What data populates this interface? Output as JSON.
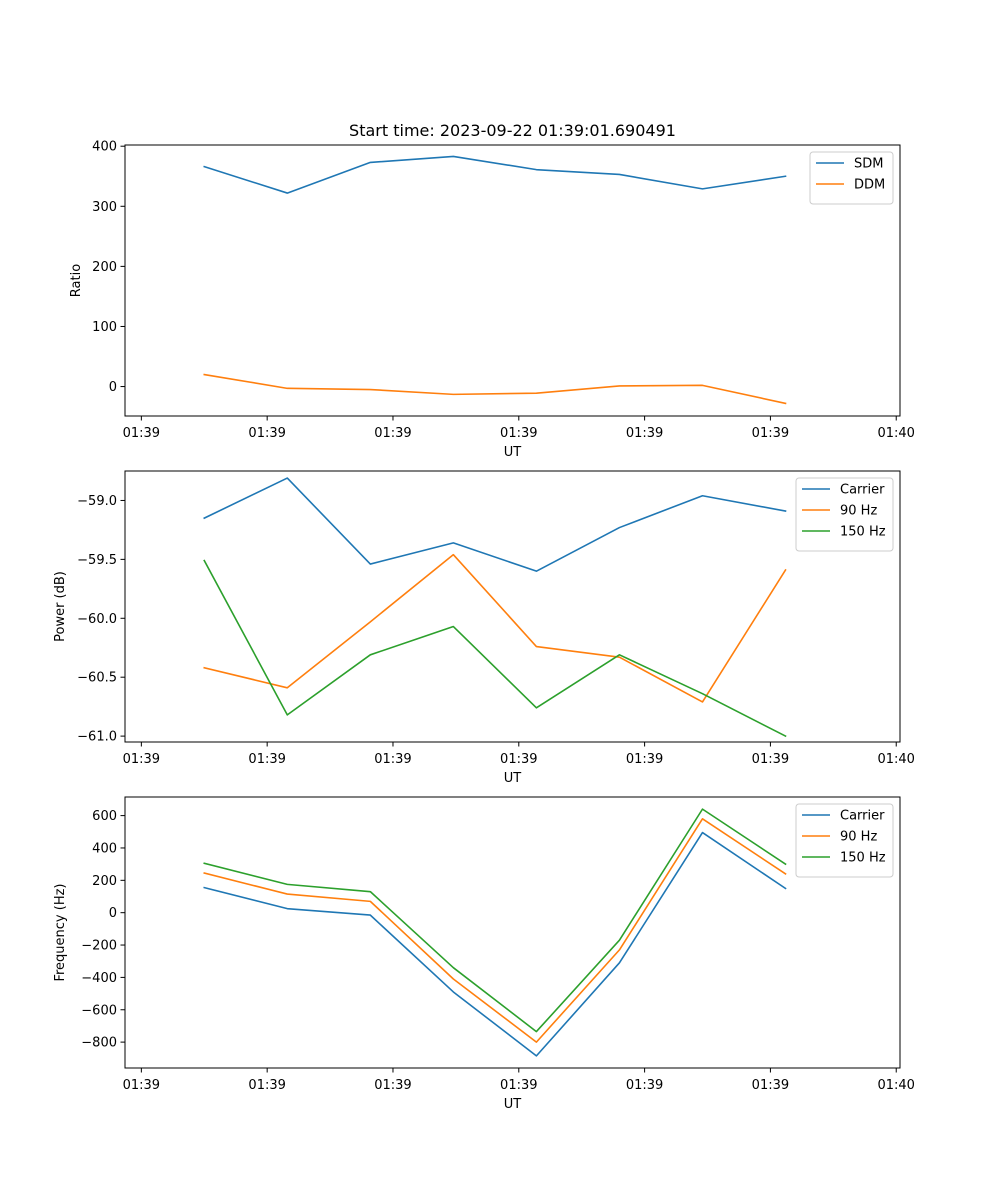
{
  "colors": {
    "blue": "#1f77b4",
    "orange": "#ff7f0e",
    "green": "#2ca02c"
  },
  "chart_data": [
    {
      "type": "line",
      "title": "Start time: 2023-09-22 01:39:01.690491",
      "xlabel": "UT",
      "ylabel": "Ratio",
      "x": [
        0.5,
        1.16,
        1.82,
        2.48,
        3.14,
        3.8,
        4.46,
        5.12
      ],
      "xlim": [
        -0.13,
        6.03
      ],
      "xticks": [
        0,
        1,
        2,
        3,
        4,
        5,
        6
      ],
      "xtick_labels": [
        "01:39",
        "01:39",
        "01:39",
        "01:39",
        "01:39",
        "01:39",
        "01:40"
      ],
      "ylim": [
        -49,
        402
      ],
      "yticks": [
        0,
        100,
        200,
        300,
        400
      ],
      "ytick_labels": [
        "0",
        "100",
        "200",
        "300",
        "400"
      ],
      "legend": "top-right",
      "series": [
        {
          "name": "SDM",
          "color": "#1f77b4",
          "values": [
            366,
            322,
            373,
            383,
            361,
            353,
            329,
            350
          ]
        },
        {
          "name": "DDM",
          "color": "#ff7f0e",
          "values": [
            20,
            -3,
            -5,
            -13,
            -11,
            1,
            2,
            -28
          ]
        }
      ]
    },
    {
      "type": "line",
      "title": "",
      "xlabel": "UT",
      "ylabel": "Power (dB)",
      "x": [
        0.5,
        1.16,
        1.82,
        2.48,
        3.14,
        3.8,
        4.46,
        5.12
      ],
      "xlim": [
        -0.13,
        6.03
      ],
      "xticks": [
        0,
        1,
        2,
        3,
        4,
        5,
        6
      ],
      "xtick_labels": [
        "01:39",
        "01:39",
        "01:39",
        "01:39",
        "01:39",
        "01:39",
        "01:40"
      ],
      "ylim": [
        -61.05,
        -58.75
      ],
      "yticks": [
        -61.0,
        -60.5,
        -60.0,
        -59.5,
        -59.0
      ],
      "ytick_labels": [
        "−61.0",
        "−60.5",
        "−60.0",
        "−59.5",
        "−59.0"
      ],
      "legend": "top-right",
      "series": [
        {
          "name": "Carrier",
          "color": "#1f77b4",
          "values": [
            -59.15,
            -58.81,
            -59.54,
            -59.36,
            -59.6,
            -59.23,
            -58.96,
            -59.09
          ]
        },
        {
          "name": "90 Hz",
          "color": "#ff7f0e",
          "values": [
            -60.42,
            -60.59,
            -60.03,
            -59.46,
            -60.24,
            -60.33,
            -60.71,
            -59.59
          ]
        },
        {
          "name": "150 Hz",
          "color": "#2ca02c",
          "values": [
            -59.51,
            -60.82,
            -60.31,
            -60.07,
            -60.76,
            -60.31,
            -60.64,
            -61.0
          ]
        }
      ]
    },
    {
      "type": "line",
      "title": "",
      "xlabel": "UT",
      "ylabel": "Frequency (Hz)",
      "x": [
        0.5,
        1.16,
        1.82,
        2.48,
        3.14,
        3.8,
        4.46,
        5.12
      ],
      "xlim": [
        -0.13,
        6.03
      ],
      "xticks": [
        0,
        1,
        2,
        3,
        4,
        5,
        6
      ],
      "xtick_labels": [
        "01:39",
        "01:39",
        "01:39",
        "01:39",
        "01:39",
        "01:39",
        "01:40"
      ],
      "ylim": [
        -960,
        715
      ],
      "yticks": [
        -800,
        -600,
        -400,
        -200,
        0,
        200,
        400,
        600
      ],
      "ytick_labels": [
        "−800",
        "−600",
        "−400",
        "−200",
        "0",
        "200",
        "400",
        "600"
      ],
      "legend": "top-right",
      "series": [
        {
          "name": "Carrier",
          "color": "#1f77b4",
          "values": [
            155,
            25,
            -15,
            -490,
            -885,
            -310,
            495,
            150
          ]
        },
        {
          "name": "90 Hz",
          "color": "#ff7f0e",
          "values": [
            245,
            115,
            70,
            -410,
            -800,
            -230,
            580,
            240
          ]
        },
        {
          "name": "150 Hz",
          "color": "#2ca02c",
          "values": [
            305,
            175,
            130,
            -340,
            -735,
            -170,
            640,
            300
          ]
        }
      ]
    }
  ]
}
